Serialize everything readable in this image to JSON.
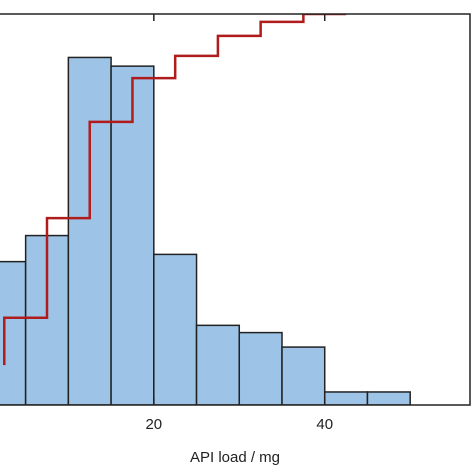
{
  "chart_data": {
    "type": "histogram",
    "xlabel": "API load / mg",
    "bins": [
      0,
      5,
      10,
      15,
      20,
      25,
      30,
      35,
      40,
      45,
      50
    ],
    "values": [
      9.9,
      11.7,
      24,
      23.4,
      10.4,
      5.5,
      5.0,
      4.0,
      0.9,
      0.9
    ],
    "color": "#9dc3e6",
    "edgecolor": "#222222",
    "xlim": [
      2,
      57
    ],
    "xticks": [
      20,
      40
    ],
    "ylim": [
      0,
      27
    ],
    "series": [
      {
        "type": "line",
        "axis": "y2",
        "color": "#b01c1c",
        "x": [
          2.5,
          2.5,
          7.5,
          7.5,
          12.5,
          12.5,
          17.5,
          17.5,
          22.5,
          22.5,
          27.5,
          27.5,
          32.5,
          32.5,
          37.5,
          37.5,
          42.5
        ],
        "values": [
          10.2,
          22.3,
          22.3,
          47.8,
          47.8,
          72.4,
          72.4,
          83.6,
          83.6,
          89.3,
          89.3,
          94.4,
          94.4,
          98,
          98,
          100,
          100
        ]
      }
    ],
    "y2lim": [
      0,
      100
    ]
  }
}
